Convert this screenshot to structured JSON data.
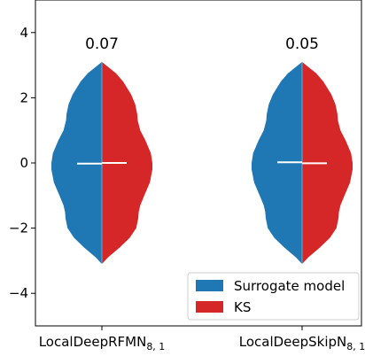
{
  "chart_data": {
    "type": "violin",
    "split": true,
    "ylim": [
      -5,
      5
    ],
    "yticks": [
      -4,
      -2,
      0,
      2,
      4
    ],
    "ytick_labels": [
      "−4",
      "−2",
      "0",
      "2",
      "4"
    ],
    "grid": false,
    "categories": [
      {
        "base": "LocalDeepRFMN",
        "sub": "8, 1"
      },
      {
        "base": "LocalDeepSkipN",
        "sub": "8, 1"
      }
    ],
    "annotations": [
      "0.07",
      "0.05"
    ],
    "series": [
      {
        "name": "Surrogate model",
        "color": "#1f77b4",
        "side": "left",
        "medians": [
          -0.02,
          0.02
        ]
      },
      {
        "name": "KS",
        "color": "#d62728",
        "side": "right",
        "medians": [
          0.0,
          -0.01
        ]
      }
    ],
    "density_profile": {
      "y": [
        -3.1,
        -2.9,
        -2.6,
        -2.3,
        -2.0,
        -1.7,
        -1.5,
        -1.3,
        -1.0,
        -0.6,
        -0.2,
        0.0,
        0.3,
        0.7,
        1.0,
        1.3,
        1.5,
        1.8,
        2.1,
        2.5,
        2.75,
        3.0,
        3.1
      ],
      "w": [
        0.0,
        0.12,
        0.35,
        0.55,
        0.68,
        0.72,
        0.73,
        0.76,
        0.84,
        0.95,
        1.0,
        1.0,
        0.97,
        0.86,
        0.76,
        0.71,
        0.7,
        0.66,
        0.58,
        0.42,
        0.28,
        0.08,
        0.0
      ]
    },
    "legend": {
      "position": "lower-right"
    }
  }
}
